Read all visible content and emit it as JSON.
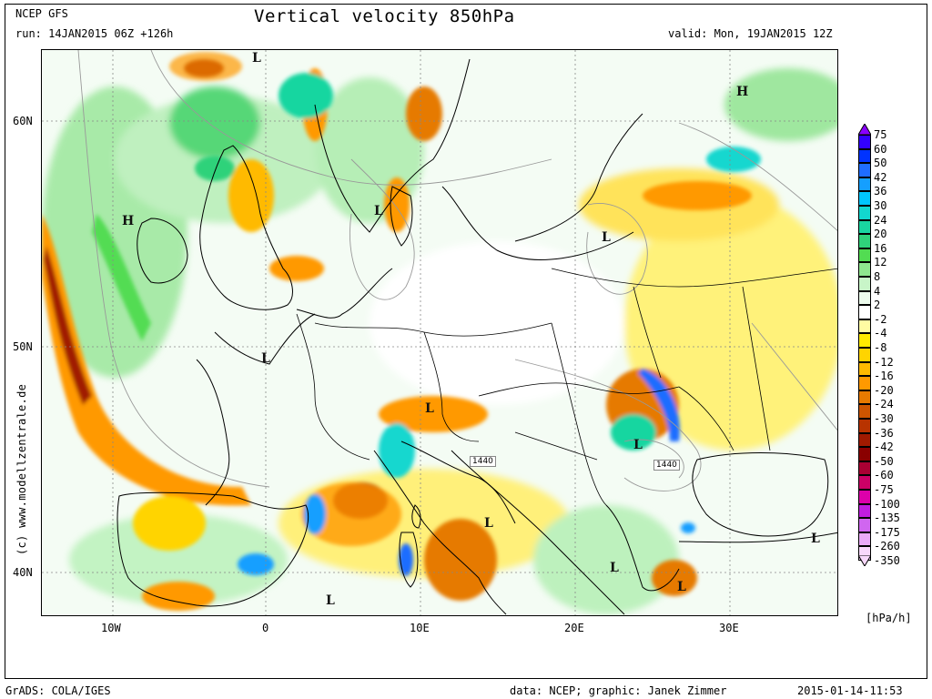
{
  "header": {
    "model": "NCEP GFS",
    "run": "run: 14JAN2015 06Z +126h",
    "title": "Vertical velocity 850hPa",
    "valid": "valid: Mon, 19JAN2015 12Z"
  },
  "map": {
    "lat_labels": [
      "60N",
      "50N",
      "40N"
    ],
    "lon_labels": [
      "10W",
      "0",
      "10E",
      "20E",
      "30E"
    ],
    "pressure_markers": [
      "L",
      "L",
      "H",
      "H",
      "L",
      "L",
      "L",
      "L",
      "L",
      "L",
      "L",
      "L",
      "L"
    ],
    "contour_labels": [
      "1440",
      "1440"
    ],
    "credit": "(c) www.modellzentrale.de"
  },
  "legend": {
    "labels": [
      "75",
      "60",
      "50",
      "42",
      "36",
      "30",
      "24",
      "20",
      "16",
      "12",
      "8",
      "4",
      "2",
      "-2",
      "-4",
      "-8",
      "-12",
      "-16",
      "-20",
      "-24",
      "-30",
      "-36",
      "-42",
      "-50",
      "-60",
      "-75",
      "-100",
      "-135",
      "-175",
      "-260",
      "-350"
    ],
    "colors": [
      "#8a00ff",
      "#3300ff",
      "#0033ff",
      "#1f6dff",
      "#159fff",
      "#00c6ff",
      "#12d7cf",
      "#19d6a0",
      "#2fd27a",
      "#52dc52",
      "#8fe78f",
      "#c8f5c8",
      "#ecfbec",
      "#ffffff",
      "#fffca3",
      "#ffeb00",
      "#ffd400",
      "#ffba00",
      "#ff9900",
      "#e67a00",
      "#cc5500",
      "#b83300",
      "#a01a00",
      "#8a0000",
      "#aa0033",
      "#cc0066",
      "#dd00aa",
      "#c01de0",
      "#d066f0",
      "#eaaaf8",
      "#f8d8fb"
    ],
    "unit": "[hPa/h]"
  },
  "footer": {
    "left": "GrADS: COLA/IGES",
    "data": "data: NCEP; graphic: Janek Zimmer",
    "timestamp": "2015-01-14-11:53"
  }
}
